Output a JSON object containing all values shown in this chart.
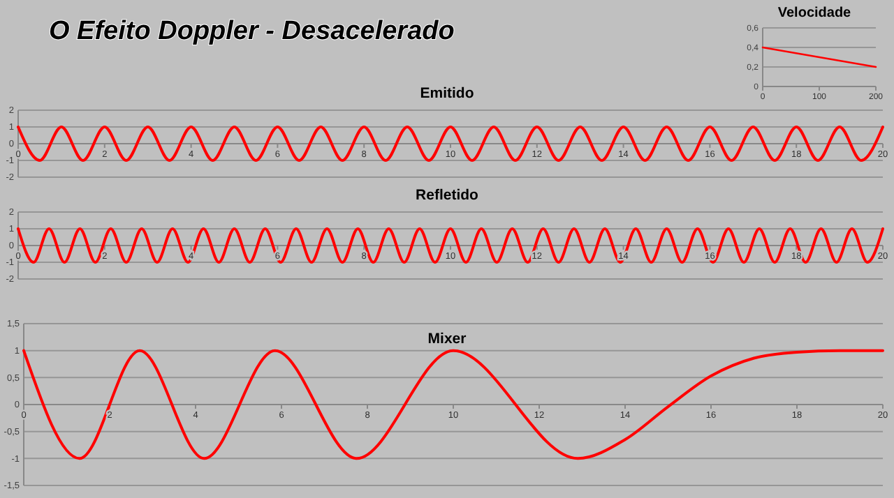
{
  "chart_data": [
    {
      "type": "other",
      "title": "O Efeito Doppler - Desacelerado"
    },
    {
      "type": "line",
      "title": "Velocidade",
      "x": [
        0,
        200
      ],
      "series": [
        {
          "color": "#ff0000",
          "values": [
            0.4,
            0.2
          ]
        }
      ],
      "xlim": [
        0,
        200
      ],
      "xticks": [
        0,
        100,
        200
      ],
      "ylim": [
        0,
        0.6
      ],
      "yticks": [
        0,
        {
          "value": 0.2,
          "label": "0,2"
        },
        {
          "value": 0.4,
          "label": "0,4"
        },
        {
          "value": 0.6,
          "label": "0,6"
        }
      ],
      "grid": "y",
      "marker": "none",
      "line_style": "solid"
    },
    {
      "type": "line",
      "title": "Emitido",
      "x": [
        0,
        0.5,
        1,
        1.5,
        2,
        2.5,
        3,
        3.5,
        4,
        4.5,
        5,
        5.5,
        6,
        6.5,
        7,
        7.5,
        8,
        8.5,
        9,
        9.5,
        10,
        10.5,
        11,
        11.5,
        12,
        12.5,
        13,
        13.5,
        14,
        14.5,
        15,
        15.5,
        16,
        16.5,
        17,
        17.5,
        18,
        18.5,
        19,
        19.5,
        20
      ],
      "series": [
        {
          "color": "#ff0000",
          "values": [
            1,
            -1,
            1,
            -1,
            1,
            -1,
            1,
            -1,
            1,
            -1,
            1,
            -1,
            1,
            -1,
            1,
            -1,
            1,
            -1,
            1,
            -1,
            1,
            -1,
            1,
            -1,
            1,
            -1,
            1,
            -1,
            1,
            -1,
            1,
            -1,
            1,
            -1,
            1,
            -1,
            1,
            -1,
            1,
            -1,
            1
          ]
        }
      ],
      "xlim": [
        0,
        20
      ],
      "xticks": [
        0,
        2,
        4,
        6,
        8,
        10,
        12,
        14,
        16,
        18,
        20
      ],
      "ylim": [
        -2,
        2
      ],
      "yticks": [
        -2,
        -1,
        0,
        1,
        2
      ],
      "grid": "y",
      "marker": "none",
      "line_style": "solid"
    },
    {
      "type": "line",
      "title": "Refletido",
      "x": [
        0,
        0.357,
        0.714,
        1.071,
        1.429,
        1.786,
        2.143,
        2.5,
        2.857,
        3.214,
        3.571,
        3.929,
        4.286,
        4.643,
        5,
        5.357,
        5.714,
        6.071,
        6.429,
        6.786,
        7.143,
        7.5,
        7.857,
        8.214,
        8.571,
        8.929,
        9.286,
        9.643,
        10,
        10.357,
        10.714,
        11.071,
        11.429,
        11.786,
        12.143,
        12.5,
        12.857,
        13.214,
        13.571,
        13.929,
        14.286,
        14.643,
        15,
        15.357,
        15.714,
        16.071,
        16.429,
        16.786,
        17.143,
        17.5,
        17.857,
        18.214,
        18.571,
        18.929,
        19.286,
        19.643,
        20
      ],
      "series": [
        {
          "color": "#ff0000",
          "values": [
            1,
            -1,
            1,
            -1,
            1,
            -1,
            1,
            -1,
            1,
            -1,
            1,
            -1,
            1,
            -1,
            1,
            -1,
            1,
            -1,
            1,
            -1,
            1,
            -1,
            1,
            -1,
            1,
            -1,
            1,
            -1,
            1,
            -1,
            1,
            -1,
            1,
            -1,
            1,
            -1,
            1,
            -1,
            1,
            -1,
            1,
            -1,
            1,
            -1,
            1,
            -1,
            1,
            -1,
            1,
            -1,
            1,
            -1,
            1,
            -1,
            1,
            -1,
            1
          ]
        }
      ],
      "xlim": [
        0,
        20
      ],
      "xticks": [
        0,
        2,
        4,
        6,
        8,
        10,
        12,
        14,
        16,
        18,
        20
      ],
      "ylim": [
        -2,
        2
      ],
      "yticks": [
        -2,
        -1,
        0,
        1,
        2
      ],
      "grid": "y",
      "marker": "none",
      "line_style": "solid"
    },
    {
      "type": "line",
      "title": "Mixer",
      "x": [
        0,
        1.3,
        2.7,
        4.2,
        5.85,
        7.75,
        10,
        12.9,
        14,
        15,
        16,
        17,
        18,
        19,
        20
      ],
      "series": [
        {
          "color": "#ff0000",
          "values": [
            1,
            -1,
            1,
            -1,
            1,
            -1,
            1,
            -1,
            -0.65,
            -0.04,
            0.53,
            0.86,
            0.97,
            1,
            1
          ]
        }
      ],
      "xlim": [
        0,
        20
      ],
      "xticks": [
        0,
        2,
        4,
        6,
        8,
        10,
        12,
        14,
        16,
        18,
        20
      ],
      "ylim": [
        -1.5,
        1.5
      ],
      "yticks": [
        {
          "value": -1.5,
          "label": "-1,5"
        },
        -1,
        {
          "value": -0.5,
          "label": "-0,5"
        },
        0,
        {
          "value": 0.5,
          "label": "0,5"
        },
        1,
        {
          "value": 1.5,
          "label": "1,5"
        }
      ],
      "grid": "y",
      "marker": "none",
      "line_style": "solid"
    }
  ]
}
